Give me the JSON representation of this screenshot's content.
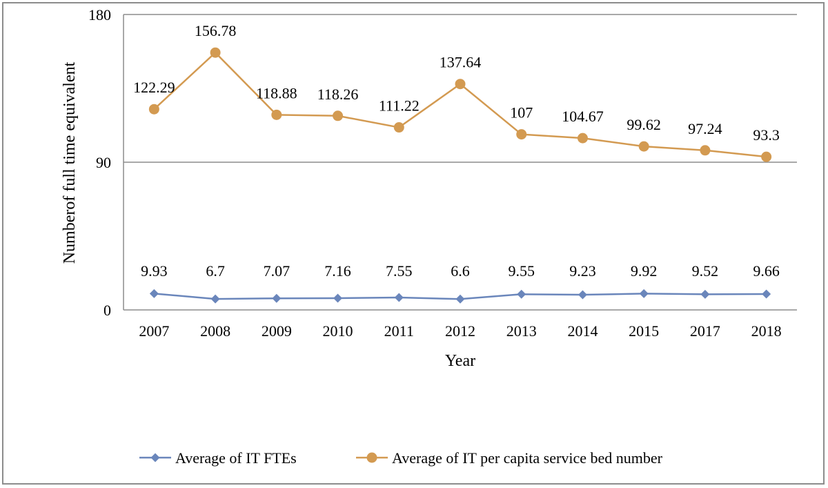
{
  "chart_data": {
    "type": "line",
    "title": "",
    "xlabel": "Year",
    "ylabel": "Numberof full time equivalent",
    "ylim": [
      0,
      180
    ],
    "yticks": [
      0,
      90,
      180
    ],
    "grid": true,
    "legend_position": "bottom",
    "categories": [
      "2007",
      "2008",
      "2009",
      "2010",
      "2011",
      "2012",
      "2013",
      "2014",
      "2015",
      "2017",
      "2018"
    ],
    "series": [
      {
        "name": "Average of IT FTEs",
        "color": "#6a86bb",
        "marker": "diamond",
        "values": [
          9.93,
          6.7,
          7.07,
          7.16,
          7.55,
          6.6,
          9.55,
          9.23,
          9.92,
          9.52,
          9.66
        ]
      },
      {
        "name": "Average of IT per capita service bed number",
        "color": "#d39a51",
        "marker": "circle",
        "values": [
          122.29,
          156.78,
          118.88,
          118.26,
          111.22,
          137.64,
          107,
          104.67,
          99.62,
          97.24,
          93.3
        ]
      }
    ]
  }
}
